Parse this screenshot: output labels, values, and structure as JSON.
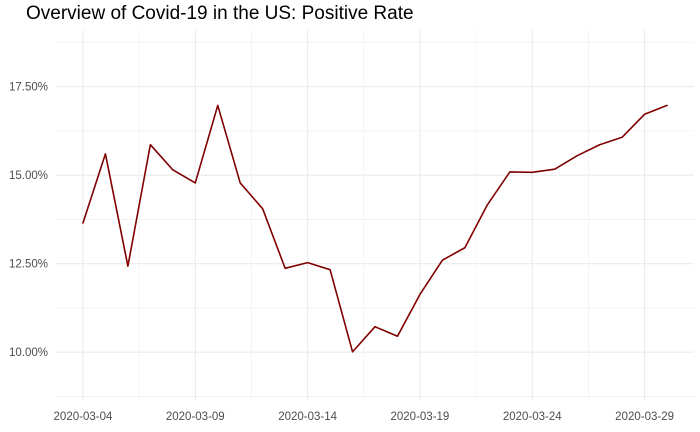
{
  "title": "Overview of Covid-19 in the US: Positive Rate",
  "chart_data": {
    "type": "line",
    "title": "Overview of Covid-19 in the US: Positive Rate",
    "xlabel": "",
    "ylabel": "",
    "x": [
      "2020-03-04",
      "2020-03-05",
      "2020-03-06",
      "2020-03-07",
      "2020-03-08",
      "2020-03-09",
      "2020-03-10",
      "2020-03-11",
      "2020-03-12",
      "2020-03-13",
      "2020-03-14",
      "2020-03-15",
      "2020-03-16",
      "2020-03-17",
      "2020-03-18",
      "2020-03-19",
      "2020-03-20",
      "2020-03-21",
      "2020-03-22",
      "2020-03-23",
      "2020-03-24",
      "2020-03-25",
      "2020-03-26",
      "2020-03-27",
      "2020-03-28",
      "2020-03-29",
      "2020-03-30"
    ],
    "series": [
      {
        "values": [
          0.1365,
          0.156,
          0.1243,
          0.1586,
          0.1515,
          0.1478,
          0.1697,
          0.1478,
          0.1405,
          0.1237,
          0.1253,
          0.1233,
          0.1001,
          0.1072,
          0.1045,
          0.1163,
          0.126,
          0.1295,
          0.1416,
          0.1509,
          0.1508,
          0.1517,
          0.1555,
          0.1586,
          0.1607,
          0.1672,
          0.1697
        ],
        "color": "#800000"
      }
    ],
    "x_ticks": [
      "2020-03-04",
      "2020-03-09",
      "2020-03-14",
      "2020-03-19",
      "2020-03-24",
      "2020-03-29"
    ],
    "y_ticks": [
      0.1,
      0.125,
      0.15,
      0.175
    ],
    "y_tick_labels": [
      "10.00%",
      "12.50%",
      "15.00%",
      "17.50%"
    ],
    "xlim": [
      "2020-03-02.8",
      "2020-03-31.2"
    ],
    "ylim": [
      0.0865,
      0.191
    ],
    "grid": true,
    "legend": "none",
    "colors": {
      "line": "#800000",
      "grid": "#ebebeb",
      "background": "#ffffff"
    }
  }
}
